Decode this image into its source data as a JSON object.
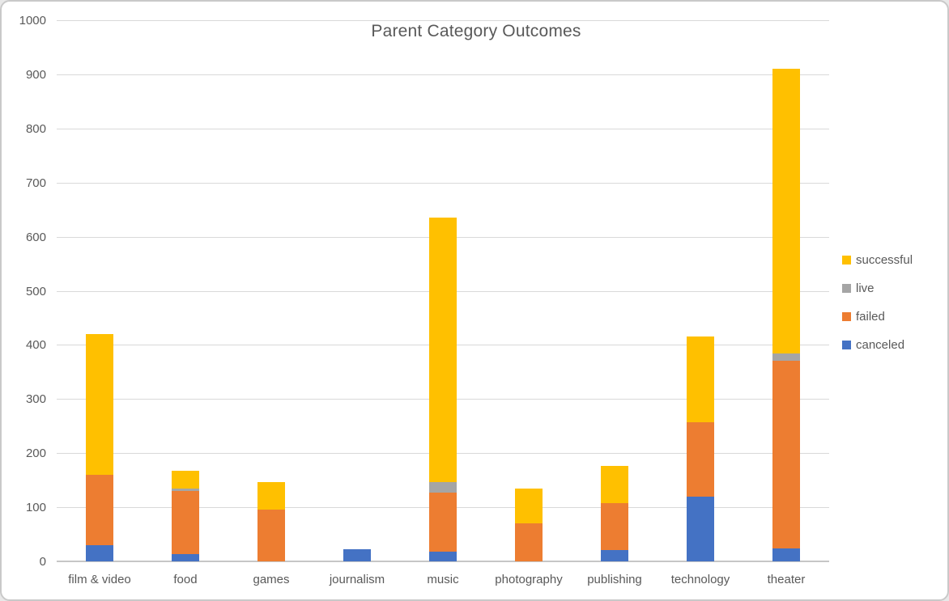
{
  "title": "Parent Category Outcomes",
  "chart_data": {
    "type": "bar",
    "stacked": true,
    "title": "Parent Category Outcomes",
    "categories": [
      "film & video",
      "food",
      "games",
      "journalism",
      "music",
      "photography",
      "publishing",
      "technology",
      "theater"
    ],
    "series": [
      {
        "name": "canceled",
        "color": "#4472C4",
        "values": [
          30,
          13,
          0,
          22,
          18,
          0,
          21,
          120,
          24
        ]
      },
      {
        "name": "failed",
        "color": "#ED7D31",
        "values": [
          130,
          117,
          95,
          0,
          109,
          70,
          86,
          137,
          347
        ]
      },
      {
        "name": "live",
        "color": "#A5A5A5",
        "values": [
          0,
          5,
          0,
          0,
          20,
          0,
          0,
          0,
          13
        ]
      },
      {
        "name": "successful",
        "color": "#FFC000",
        "values": [
          260,
          32,
          52,
          0,
          488,
          64,
          70,
          159,
          527
        ]
      }
    ],
    "totals": [
      420,
      167,
      147,
      22,
      635,
      134,
      177,
      416,
      911
    ],
    "ylabel": "",
    "xlabel": "",
    "ylim": [
      0,
      1000
    ],
    "yticks": [
      0,
      100,
      200,
      300,
      400,
      500,
      600,
      700,
      800,
      900,
      1000
    ],
    "grid": true,
    "legend_position": "right",
    "legend_order": [
      "successful",
      "live",
      "failed",
      "canceled"
    ]
  },
  "text_color": "#595959",
  "gridline_color": "#d9d9d9"
}
